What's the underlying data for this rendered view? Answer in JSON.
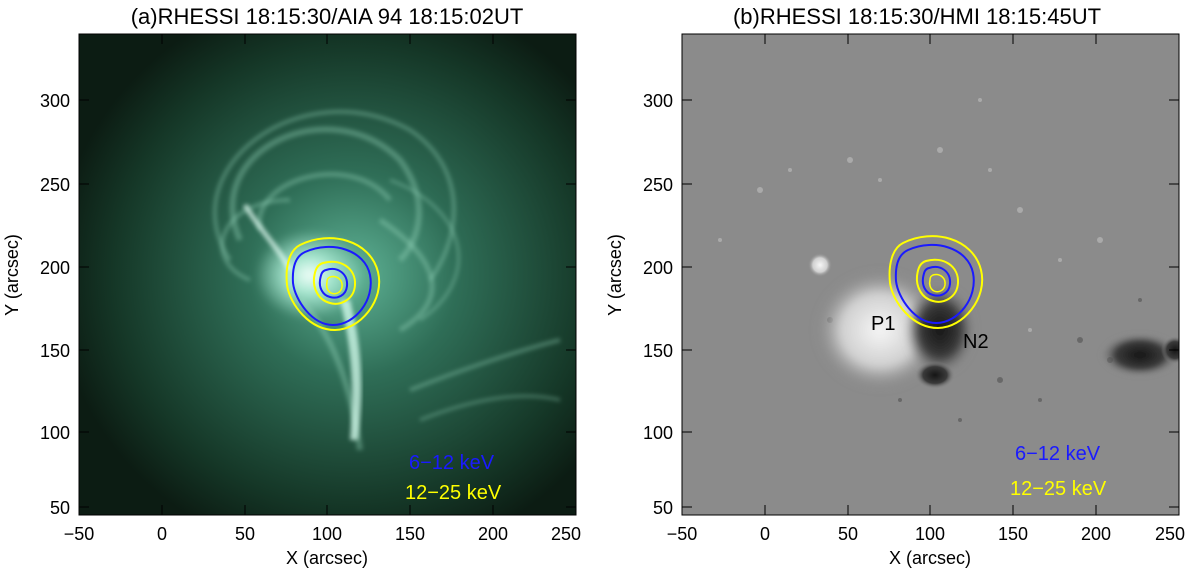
{
  "panels": [
    {
      "title": "(a)RHESSI 18:15:30/AIA 94 18:15:02UT",
      "xlabel": "X (arcsec)",
      "ylabel": "Y (arcsec)",
      "xticks": [
        "−50",
        "0",
        "50",
        "100",
        "150",
        "200",
        "250"
      ],
      "yticks": [
        "50",
        "100",
        "150",
        "200",
        "250",
        "300"
      ],
      "legend": [
        {
          "label": "6−12 keV",
          "color": "#1a1aff"
        },
        {
          "label": "12−25 keV",
          "color": "#ffff00"
        }
      ],
      "image_colors": {
        "background": "#0e1f16",
        "plasma": "#9fe0c8",
        "bright": "#e6fff6"
      }
    },
    {
      "title": "(b)RHESSI 18:15:30/HMI 18:15:45UT",
      "xlabel": "X (arcsec)",
      "ylabel": "Y (arcsec)",
      "xticks": [
        "−50",
        "0",
        "50",
        "100",
        "150",
        "200",
        "250"
      ],
      "yticks": [
        "50",
        "100",
        "150",
        "200",
        "250",
        "300"
      ],
      "legend": [
        {
          "label": "6−12 keV",
          "color": "#1a1aff"
        },
        {
          "label": "12−25 keV",
          "color": "#ffff00"
        }
      ],
      "annotations": {
        "p1": "P1",
        "n2": "N2"
      },
      "image_colors": {
        "background": "#8a8a8a",
        "positive": "#f0f0f0",
        "negative": "#1a1a1a"
      }
    }
  ]
}
